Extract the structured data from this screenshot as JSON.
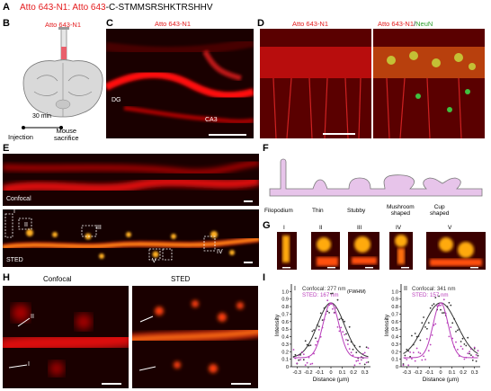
{
  "panels": {
    "A": {
      "letter": "A",
      "seq_part1": "Atto 643-N1: Atto 643",
      "seq_part2": "-C-STMMSRSHKTRSHHV"
    },
    "B": {
      "letter": "B",
      "title": "Atto 643-N1",
      "time": "30 min",
      "injection": "Injection",
      "sacrifice_line1": "Mouse",
      "sacrifice_line2": "sacrifice"
    },
    "C": {
      "letter": "C",
      "title": "Atto 643-N1",
      "dg": "DG",
      "ca3": "CA3"
    },
    "D": {
      "letter": "D",
      "title_left": "Atto 643-N1",
      "title_right_red": "Atto 643-N1",
      "title_right_sep": "/",
      "title_right_green": "NeuN"
    },
    "E": {
      "letter": "E",
      "confocal": "Confocal",
      "sted": "STED",
      "rois": [
        "I",
        "II",
        "III",
        "IV",
        "V"
      ]
    },
    "F": {
      "letter": "F",
      "types": [
        "Filopodium",
        "Thin",
        "Stubby",
        "Mushroom",
        "shaped",
        "Cup",
        "shaped"
      ]
    },
    "G": {
      "letter": "G",
      "labels": [
        "I",
        "II",
        "III",
        "IV",
        "V"
      ]
    },
    "H": {
      "letter": "H",
      "confocal": "Confocal",
      "sted": "STED",
      "line1": "I",
      "line2": "II"
    },
    "I": {
      "letter": "I"
    }
  },
  "chart_data": [
    {
      "type": "scatter",
      "panel_label": "I",
      "legend": [
        "Confocal: 277 nm",
        "STED: 167 nm",
        "(FWHM)"
      ],
      "xlabel": "Distance (µm)",
      "ylabel": "Intensity",
      "xlim": [
        -0.35,
        0.35
      ],
      "ylim": [
        0,
        1.1
      ],
      "xticks": [
        "-0.3",
        "-0.2",
        "-0.1",
        "0",
        "0.1",
        "0.2",
        "0.3"
      ],
      "yticks": [
        "0",
        "0.1",
        "0.2",
        "0.3",
        "0.4",
        "0.5",
        "0.6",
        "0.7",
        "0.8",
        "0.9",
        "1.0"
      ],
      "series": [
        {
          "name": "Confocal",
          "color": "#333333",
          "fwhm": 0.277
        },
        {
          "name": "STED",
          "color": "#b83dba",
          "fwhm": 0.167
        }
      ]
    },
    {
      "type": "scatter",
      "panel_label": "II",
      "legend": [
        "Confocal: 341 nm",
        "STED: 157 nm"
      ],
      "xlabel": "Distance (µm)",
      "ylabel": "Intensity",
      "xlim": [
        -0.35,
        0.35
      ],
      "ylim": [
        0,
        1.1
      ],
      "xticks": [
        "-0.3",
        "-0.2",
        "-0.1",
        "0",
        "0.1",
        "0.2",
        "0.3"
      ],
      "yticks": [
        "0",
        "0.1",
        "0.2",
        "0.3",
        "0.4",
        "0.5",
        "0.6",
        "0.7",
        "0.8",
        "0.9",
        "1.0"
      ],
      "series": [
        {
          "name": "Confocal",
          "color": "#333333",
          "fwhm": 0.341
        },
        {
          "name": "STED",
          "color": "#b83dba",
          "fwhm": 0.157
        }
      ]
    }
  ]
}
